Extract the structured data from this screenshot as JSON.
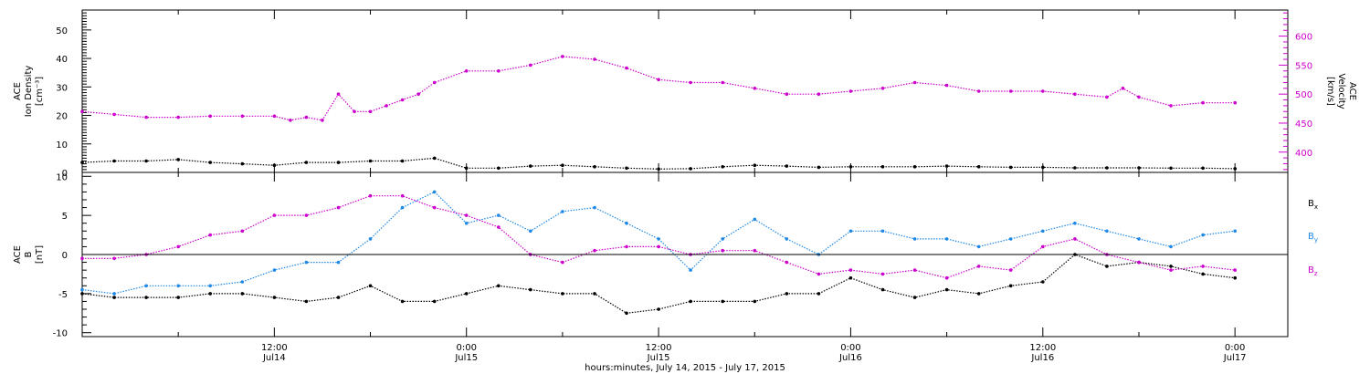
{
  "chart_data": [
    {
      "type": "scatter",
      "panel": "top",
      "ylabel_left_lines": [
        "ACE",
        "Ion Density",
        "[cm⁻³]"
      ],
      "ylabel_right_lines": [
        "ACE",
        "Velocity",
        "[km/s]"
      ],
      "left_ylim": [
        0,
        57
      ],
      "left_yticks": [
        0,
        10,
        20,
        30,
        40,
        50
      ],
      "right_ylim": [
        365,
        645
      ],
      "right_yticks": [
        400,
        450,
        500,
        550,
        600
      ],
      "xlim_hours": [
        0,
        75.3
      ],
      "colors": {
        "density": "#000000",
        "velocity": "#cc00cc"
      },
      "series": [
        {
          "axis": "left",
          "color": "#000000",
          "t": [
            0,
            2,
            4,
            6,
            8,
            10,
            12,
            14,
            16,
            18,
            20,
            22,
            24,
            26,
            28,
            30,
            32,
            34,
            36,
            38,
            40,
            42,
            44,
            46,
            48,
            50,
            52,
            54,
            56,
            58,
            60,
            62,
            64,
            66,
            68,
            70,
            72
          ],
          "values": [
            3.5,
            4,
            4,
            4.5,
            3.5,
            3,
            2.5,
            3.5,
            3.5,
            4,
            4,
            5,
            1.5,
            1.5,
            2.2,
            2.5,
            2.0,
            1.5,
            1.2,
            1.3,
            2.0,
            2.5,
            2.2,
            1.8,
            2.0,
            2.0,
            2.0,
            2.2,
            2.0,
            1.8,
            1.8,
            1.6,
            1.6,
            1.6,
            1.5,
            1.5,
            1.3
          ]
        },
        {
          "axis": "right",
          "color": "#cc00cc",
          "t": [
            0,
            2,
            4,
            6,
            8,
            10,
            12,
            13,
            14,
            15,
            16,
            17,
            18,
            19,
            20,
            21,
            22,
            24,
            26,
            28,
            30,
            32,
            34,
            36,
            38,
            40,
            42,
            44,
            46,
            48,
            50,
            52,
            54,
            56,
            58,
            60,
            62,
            64,
            65,
            66,
            68,
            70,
            72
          ],
          "values": [
            470,
            465,
            460,
            460,
            462,
            462,
            462,
            455,
            460,
            455,
            500,
            470,
            470,
            480,
            490,
            500,
            520,
            540,
            540,
            550,
            565,
            560,
            545,
            525,
            520,
            520,
            510,
            500,
            500,
            505,
            510,
            520,
            515,
            505,
            505,
            505,
            500,
            495,
            510,
            495,
            480,
            485,
            485
          ]
        }
      ]
    },
    {
      "type": "line",
      "panel": "bottom",
      "ylabel_lines": [
        "ACE",
        "B",
        "[nT]"
      ],
      "ylim": [
        -10.5,
        10.5
      ],
      "yticks": [
        -10,
        -5,
        0,
        5,
        10
      ],
      "xlim_hours": [
        0,
        75.3
      ],
      "x_ticks": [
        {
          "hours": 12,
          "time": "12:00",
          "date": "Jul14"
        },
        {
          "hours": 24,
          "time": "0:00",
          "date": "Jul15"
        },
        {
          "hours": 36,
          "time": "12:00",
          "date": "Jul15"
        },
        {
          "hours": 48,
          "time": "0:00",
          "date": "Jul16"
        },
        {
          "hours": 60,
          "time": "12:00",
          "date": "Jul16"
        },
        {
          "hours": 72,
          "time": "0:00",
          "date": "Jul17"
        }
      ],
      "xlabel": "hours:minutes, July 14, 2015 - July 17, 2015",
      "zero_line": true,
      "series": [
        {
          "name": "B",
          "sub": "x",
          "color": "#000000",
          "t": [
            0,
            2,
            4,
            6,
            8,
            10,
            12,
            14,
            16,
            18,
            20,
            22,
            24,
            26,
            28,
            30,
            32,
            34,
            36,
            38,
            40,
            42,
            44,
            46,
            48,
            50,
            52,
            54,
            56,
            58,
            60,
            62,
            64,
            66,
            68,
            70,
            72
          ],
          "values": [
            -5,
            -5.5,
            -5.5,
            -5.5,
            -5,
            -5,
            -5.5,
            -6,
            -5.5,
            -4,
            -6,
            -6,
            -5,
            -4,
            -4.5,
            -5,
            -5,
            -7.5,
            -7,
            -6,
            -6,
            -6,
            -5,
            -5,
            -3,
            -4.5,
            -5.5,
            -4.5,
            -5,
            -4,
            -3.5,
            0,
            -1.5,
            -1,
            -1.5,
            -2.5,
            -3
          ]
        },
        {
          "name": "B",
          "sub": "y",
          "color": "#1e88e5",
          "t": [
            0,
            2,
            4,
            6,
            8,
            10,
            12,
            14,
            16,
            18,
            20,
            22,
            24,
            26,
            28,
            30,
            32,
            34,
            36,
            38,
            40,
            42,
            44,
            46,
            48,
            50,
            52,
            54,
            56,
            58,
            60,
            62,
            64,
            66,
            68,
            70,
            72
          ],
          "values": [
            -4.5,
            -5,
            -4,
            -4,
            -4,
            -3.5,
            -2,
            -1,
            -1,
            2,
            6,
            8,
            4,
            5,
            3,
            5.5,
            6,
            4,
            2,
            -2,
            2,
            4.5,
            2,
            0,
            3,
            3,
            2,
            2,
            1,
            2,
            3,
            4,
            3,
            2,
            1,
            2.5,
            3
          ]
        },
        {
          "name": "B",
          "sub": "z",
          "color": "#cc00cc",
          "t": [
            0,
            2,
            4,
            6,
            8,
            10,
            12,
            14,
            16,
            18,
            20,
            22,
            24,
            26,
            28,
            30,
            32,
            34,
            36,
            38,
            40,
            42,
            44,
            46,
            48,
            50,
            52,
            54,
            56,
            58,
            60,
            62,
            64,
            66,
            68,
            70,
            72
          ],
          "values": [
            -0.5,
            -0.5,
            0,
            1,
            2.5,
            3,
            5,
            5,
            6,
            7.5,
            7.5,
            6,
            5,
            3.5,
            0,
            -1,
            0.5,
            1,
            1,
            0,
            0.5,
            0.5,
            -1,
            -2.5,
            -2,
            -2.5,
            -2,
            -3,
            -1.5,
            -2,
            1,
            2,
            0,
            -1,
            -2,
            -1.5,
            -2
          ]
        }
      ]
    }
  ]
}
